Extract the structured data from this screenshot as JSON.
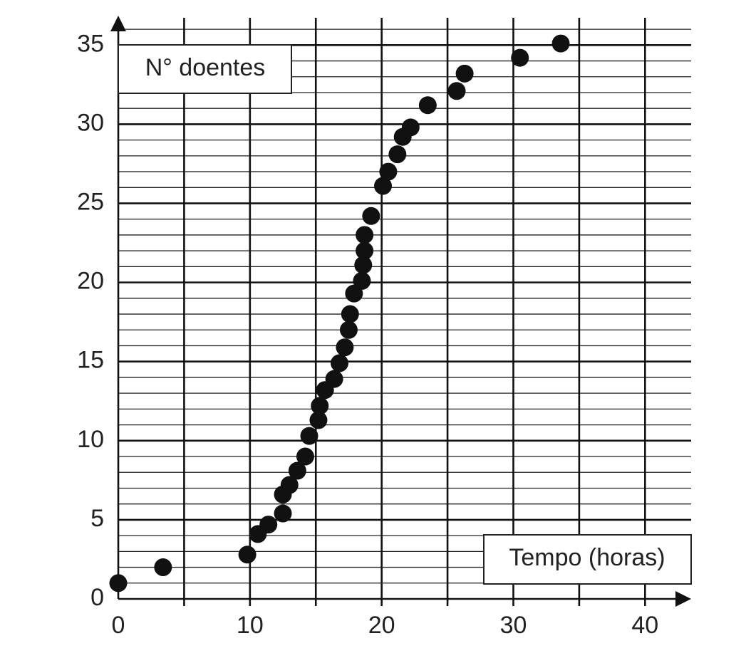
{
  "chart_data": {
    "type": "scatter",
    "xlabel": "Tempo (horas)",
    "ylabel": "N° doentes",
    "x": [
      0,
      3.4,
      9.8,
      10.6,
      11.4,
      12.5,
      12.5,
      13.0,
      13.6,
      14.2,
      14.5,
      15.2,
      15.3,
      15.7,
      16.4,
      16.8,
      17.2,
      17.5,
      17.6,
      17.9,
      18.5,
      18.6,
      18.7,
      18.7,
      19.2,
      20.1,
      20.5,
      21.2,
      21.6,
      22.2,
      23.5,
      25.7,
      26.3,
      30.5,
      33.6
    ],
    "values": [
      1,
      2,
      2.8,
      4.1,
      4.7,
      5.4,
      6.6,
      7.2,
      8.1,
      9.0,
      10.3,
      11.3,
      12.2,
      13.2,
      13.9,
      14.9,
      15.9,
      17.0,
      18.0,
      19.3,
      20.1,
      21.1,
      22.0,
      23.0,
      24.2,
      26.1,
      27.0,
      28.1,
      29.2,
      29.8,
      31.2,
      32.1,
      33.2,
      34.2,
      35.1
    ],
    "color": "#111111",
    "xlim": [
      0,
      43.5
    ],
    "ylim": [
      0,
      36.5
    ],
    "xticks": [
      0,
      10,
      20,
      30,
      40
    ],
    "yticks": [
      0,
      5,
      10,
      15,
      20,
      25,
      30,
      35
    ],
    "xgrid": [
      5,
      10,
      15,
      20,
      25,
      30,
      35,
      40
    ],
    "ygrid": [
      1,
      2,
      3,
      4,
      5,
      6,
      7,
      8,
      9,
      10,
      11,
      12,
      13,
      14,
      15,
      16,
      17,
      18,
      19,
      20,
      21,
      22,
      23,
      24,
      25,
      26,
      27,
      28,
      29,
      30,
      31,
      32,
      33,
      34,
      35,
      36
    ]
  }
}
